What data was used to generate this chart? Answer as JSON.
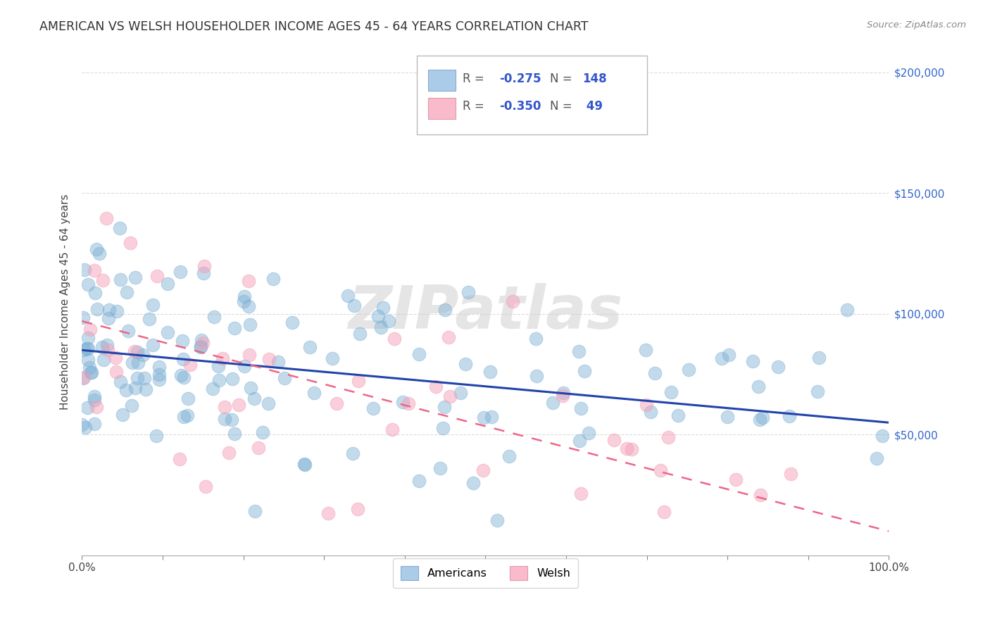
{
  "title": "AMERICAN VS WELSH HOUSEHOLDER INCOME AGES 45 - 64 YEARS CORRELATION CHART",
  "source": "Source: ZipAtlas.com",
  "ylabel": "Householder Income Ages 45 - 64 years",
  "background_color": "#ffffff",
  "watermark": "ZIPatlas",
  "american_color": "#7BAFD4",
  "welsh_color": "#F4A0B8",
  "american_line_color": "#2244AA",
  "welsh_line_color": "#EE6688",
  "legend_R_color": "#3355CC",
  "legend_N_color": "#3355CC",
  "R_american": -0.275,
  "N_american": 148,
  "R_welsh": -0.35,
  "N_welsh": 49,
  "xlim": [
    0.0,
    1.0
  ],
  "ylim": [
    0,
    210000
  ],
  "yticks": [
    50000,
    100000,
    150000,
    200000
  ],
  "ytick_labels": [
    "$50,000",
    "$100,000",
    "$150,000",
    "$200,000"
  ],
  "xticks": [
    0.0,
    0.1,
    0.2,
    0.3,
    0.4,
    0.5,
    0.6,
    0.7,
    0.8,
    0.9,
    1.0
  ],
  "xtick_labels": [
    "0.0%",
    "",
    "",
    "",
    "",
    "",
    "",
    "",
    "",
    "",
    "100.0%"
  ],
  "am_line_x0": 0.0,
  "am_line_y0": 85000,
  "am_line_x1": 1.0,
  "am_line_y1": 55000,
  "w_line_x0": 0.0,
  "w_line_y0": 97000,
  "w_line_x1": 1.0,
  "w_line_y1": 10000
}
